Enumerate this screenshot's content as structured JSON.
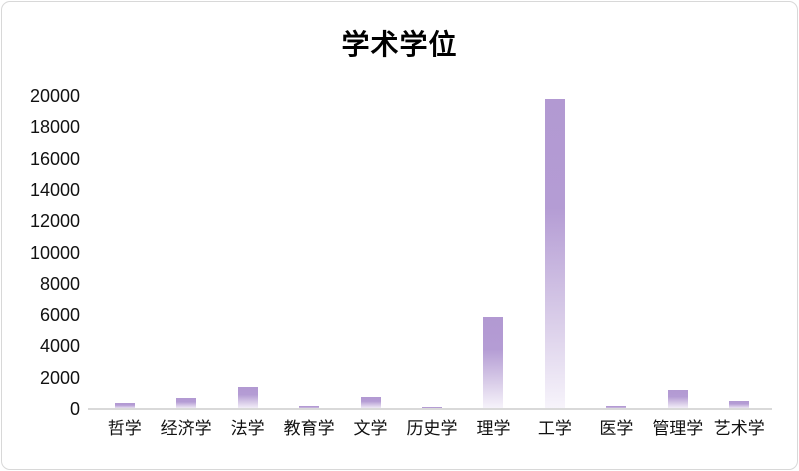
{
  "chart_data": {
    "type": "bar",
    "title": "学术学位",
    "categories": [
      "哲学",
      "经济学",
      "法学",
      "教育学",
      "文学",
      "历史学",
      "理学",
      "工学",
      "医学",
      "管理学",
      "艺术学"
    ],
    "values": [
      400,
      700,
      1400,
      200,
      750,
      150,
      5900,
      19800,
      200,
      1200,
      500
    ],
    "xlabel": "",
    "ylabel": "",
    "ylim": [
      0,
      20000
    ],
    "y_tick_step": 2000,
    "y_ticks": [
      0,
      2000,
      4000,
      6000,
      8000,
      10000,
      12000,
      14000,
      16000,
      18000,
      20000
    ],
    "grid": false,
    "legend": null,
    "colors": {
      "bar_top": "#B299D2",
      "bar_mid": "#B49CD4",
      "bar_fade": "#DACEE9",
      "bar_bottom": "#F7F4FB",
      "axis_line": "#D9D9D9",
      "frame_border": "#D8D8D8",
      "text": "#111111",
      "title_text": "#000000"
    }
  }
}
